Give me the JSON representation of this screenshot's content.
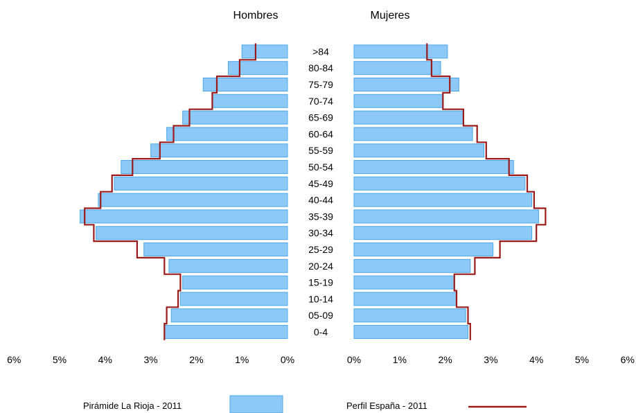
{
  "chart_data": {
    "type": "bar",
    "subtype": "population-pyramid",
    "panels": [
      {
        "key": "hombres",
        "title": "Hombres"
      },
      {
        "key": "mujeres",
        "title": "Mujeres"
      }
    ],
    "categories": [
      "0-4",
      "05-09",
      "10-14",
      "15-19",
      "20-24",
      "25-29",
      "30-34",
      "35-39",
      "40-44",
      "45-49",
      "50-54",
      "55-59",
      "60-64",
      "65-69",
      "70-74",
      "75-79",
      "80-84",
      ">84"
    ],
    "x_ticks": [
      "0%",
      "1%",
      "2%",
      "3%",
      "4%",
      "5%",
      "6%"
    ],
    "xlim": [
      0,
      6
    ],
    "series": [
      {
        "name": "Pirámide La Rioja - 2011",
        "kind": "bars",
        "color": "#8EC8F6",
        "edge_color": "#4AA8E8",
        "hombres": [
          2.7,
          2.55,
          2.35,
          2.3,
          2.6,
          3.15,
          4.2,
          4.55,
          4.15,
          3.8,
          3.65,
          3.0,
          2.65,
          2.3,
          1.65,
          1.85,
          1.3,
          1.0
        ],
        "mujeres": [
          2.5,
          2.45,
          2.25,
          2.2,
          2.55,
          3.05,
          3.9,
          4.05,
          3.9,
          3.75,
          3.5,
          2.85,
          2.6,
          2.4,
          1.95,
          2.3,
          1.9,
          2.05
        ]
      },
      {
        "name": "Perfil España - 2011",
        "kind": "step-line",
        "color": "#9B1B1B",
        "hombres": [
          2.7,
          2.65,
          2.4,
          2.35,
          2.7,
          3.3,
          4.25,
          4.45,
          4.1,
          3.85,
          3.4,
          2.8,
          2.5,
          2.15,
          1.65,
          1.55,
          1.05,
          0.7
        ],
        "mujeres": [
          2.55,
          2.5,
          2.25,
          2.2,
          2.65,
          3.2,
          4.0,
          4.2,
          3.95,
          3.8,
          3.4,
          2.9,
          2.7,
          2.4,
          1.95,
          2.1,
          1.7,
          1.6
        ]
      }
    ],
    "legend": {
      "position": "bottom",
      "items": [
        {
          "label": "Pirámide La Rioja - 2011",
          "swatch": "bar"
        },
        {
          "label": "Perfil España - 2011",
          "swatch": "line"
        }
      ]
    },
    "grid": false
  }
}
